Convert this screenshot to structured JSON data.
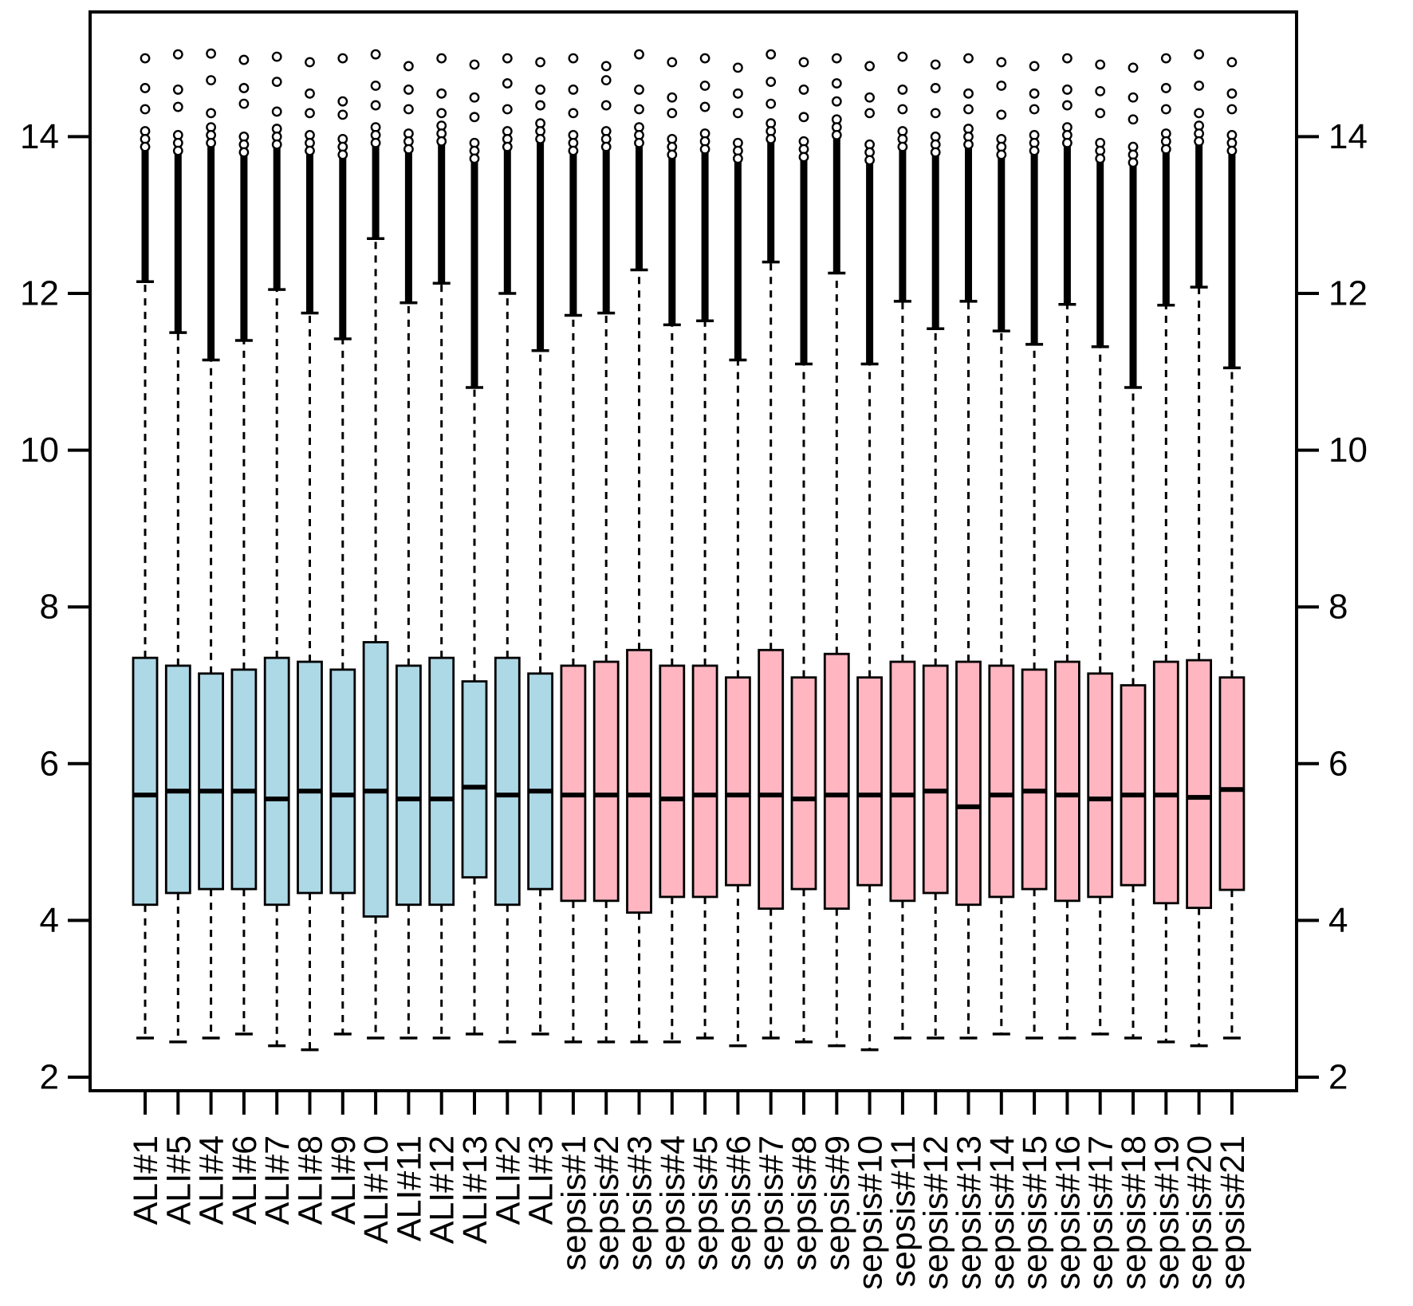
{
  "chart_data": {
    "type": "boxplot",
    "title": "",
    "xlabel": "",
    "ylabel": "",
    "ylim": [
      1.8,
      15.6
    ],
    "y_ticks": [
      2,
      4,
      6,
      8,
      10,
      12,
      14
    ],
    "y_axis_sides": [
      "left",
      "right"
    ],
    "grid": false,
    "legend": "none",
    "x_tick_label_rotation_deg": -90,
    "groups": [
      {
        "name": "ALI",
        "color": "#ADD8E6",
        "count": 13
      },
      {
        "name": "sepsis",
        "color": "#FFB6C1",
        "count": 21
      }
    ],
    "categories": [
      "ALI#1",
      "ALI#5",
      "ALI#4",
      "ALI#6",
      "ALI#7",
      "ALI#8",
      "ALI#9",
      "ALI#10",
      "ALI#11",
      "ALI#12",
      "ALI#13",
      "ALI#2",
      "ALI#3",
      "sepsis#1",
      "sepsis#2",
      "sepsis#3",
      "sepsis#4",
      "sepsis#5",
      "sepsis#6",
      "sepsis#7",
      "sepsis#8",
      "sepsis#9",
      "sepsis#10",
      "sepsis#11",
      "sepsis#12",
      "sepsis#13",
      "sepsis#14",
      "sepsis#15",
      "sepsis#16",
      "sepsis#17",
      "sepsis#18",
      "sepsis#19",
      "sepsis#20",
      "sepsis#21"
    ],
    "boxes": [
      {
        "label": "ALI#1",
        "group": "ALI",
        "whisker_low": 2.5,
        "q1": 4.2,
        "median": 5.6,
        "q3": 7.35,
        "whisker_high": 12.15,
        "outlier_col_top": 14.05,
        "outliers": [
          15.0,
          14.62,
          14.35
        ]
      },
      {
        "label": "ALI#5",
        "group": "ALI",
        "whisker_low": 2.45,
        "q1": 4.35,
        "median": 5.65,
        "q3": 7.25,
        "whisker_high": 11.5,
        "outlier_col_top": 14.0,
        "outliers": [
          15.05,
          14.6,
          14.38
        ]
      },
      {
        "label": "ALI#4",
        "group": "ALI",
        "whisker_low": 2.5,
        "q1": 4.4,
        "median": 5.65,
        "q3": 7.15,
        "whisker_high": 11.15,
        "outlier_col_top": 14.1,
        "outliers": [
          15.06,
          14.72,
          14.3
        ]
      },
      {
        "label": "ALI#6",
        "group": "ALI",
        "whisker_low": 2.55,
        "q1": 4.4,
        "median": 5.65,
        "q3": 7.2,
        "whisker_high": 11.4,
        "outlier_col_top": 13.98,
        "outliers": [
          14.98,
          14.62,
          14.42
        ]
      },
      {
        "label": "ALI#7",
        "group": "ALI",
        "whisker_low": 2.4,
        "q1": 4.2,
        "median": 5.55,
        "q3": 7.35,
        "whisker_high": 12.05,
        "outlier_col_top": 14.08,
        "outliers": [
          15.02,
          14.7,
          14.32
        ]
      },
      {
        "label": "ALI#8",
        "group": "ALI",
        "whisker_low": 2.35,
        "q1": 4.35,
        "median": 5.65,
        "q3": 7.3,
        "whisker_high": 11.75,
        "outlier_col_top": 14.0,
        "outliers": [
          14.95,
          14.55,
          14.3
        ]
      },
      {
        "label": "ALI#9",
        "group": "ALI",
        "whisker_low": 2.55,
        "q1": 4.35,
        "median": 5.6,
        "q3": 7.2,
        "whisker_high": 11.42,
        "outlier_col_top": 13.95,
        "outliers": [
          15.0,
          14.45,
          14.28
        ]
      },
      {
        "label": "ALI#10",
        "group": "ALI",
        "whisker_low": 2.5,
        "q1": 4.05,
        "median": 5.65,
        "q3": 7.55,
        "whisker_high": 12.7,
        "outlier_col_top": 14.1,
        "outliers": [
          15.05,
          14.65,
          14.4
        ]
      },
      {
        "label": "ALI#11",
        "group": "ALI",
        "whisker_low": 2.5,
        "q1": 4.2,
        "median": 5.55,
        "q3": 7.25,
        "whisker_high": 11.88,
        "outlier_col_top": 14.02,
        "outliers": [
          14.9,
          14.6,
          14.35
        ]
      },
      {
        "label": "ALI#12",
        "group": "ALI",
        "whisker_low": 2.5,
        "q1": 4.2,
        "median": 5.55,
        "q3": 7.35,
        "whisker_high": 12.13,
        "outlier_col_top": 14.12,
        "outliers": [
          15.0,
          14.55,
          14.3
        ]
      },
      {
        "label": "ALI#13",
        "group": "ALI",
        "whisker_low": 2.55,
        "q1": 4.55,
        "median": 5.7,
        "q3": 7.05,
        "whisker_high": 10.8,
        "outlier_col_top": 13.9,
        "outliers": [
          14.92,
          14.5,
          14.25
        ]
      },
      {
        "label": "ALI#2",
        "group": "ALI",
        "whisker_low": 2.45,
        "q1": 4.2,
        "median": 5.6,
        "q3": 7.35,
        "whisker_high": 12.0,
        "outlier_col_top": 14.05,
        "outliers": [
          15.0,
          14.68,
          14.35
        ]
      },
      {
        "label": "ALI#3",
        "group": "ALI",
        "whisker_low": 2.55,
        "q1": 4.4,
        "median": 5.65,
        "q3": 7.15,
        "whisker_high": 11.27,
        "outlier_col_top": 14.15,
        "outliers": [
          14.95,
          14.6,
          14.4
        ]
      },
      {
        "label": "sepsis#1",
        "group": "sepsis",
        "whisker_low": 2.45,
        "q1": 4.25,
        "median": 5.6,
        "q3": 7.25,
        "whisker_high": 11.72,
        "outlier_col_top": 14.0,
        "outliers": [
          15.0,
          14.6,
          14.3
        ]
      },
      {
        "label": "sepsis#2",
        "group": "sepsis",
        "whisker_low": 2.45,
        "q1": 4.25,
        "median": 5.6,
        "q3": 7.3,
        "whisker_high": 11.75,
        "outlier_col_top": 14.05,
        "outliers": [
          14.9,
          14.72,
          14.4
        ]
      },
      {
        "label": "sepsis#3",
        "group": "sepsis",
        "whisker_low": 2.45,
        "q1": 4.1,
        "median": 5.6,
        "q3": 7.45,
        "whisker_high": 12.3,
        "outlier_col_top": 14.1,
        "outliers": [
          15.05,
          14.6,
          14.35
        ]
      },
      {
        "label": "sepsis#4",
        "group": "sepsis",
        "whisker_low": 2.45,
        "q1": 4.3,
        "median": 5.55,
        "q3": 7.25,
        "whisker_high": 11.6,
        "outlier_col_top": 13.95,
        "outliers": [
          14.95,
          14.5,
          14.3
        ]
      },
      {
        "label": "sepsis#5",
        "group": "sepsis",
        "whisker_low": 2.5,
        "q1": 4.3,
        "median": 5.6,
        "q3": 7.25,
        "whisker_high": 11.65,
        "outlier_col_top": 14.02,
        "outliers": [
          15.0,
          14.65,
          14.38
        ]
      },
      {
        "label": "sepsis#6",
        "group": "sepsis",
        "whisker_low": 2.4,
        "q1": 4.45,
        "median": 5.6,
        "q3": 7.1,
        "whisker_high": 11.15,
        "outlier_col_top": 13.9,
        "outliers": [
          14.88,
          14.55,
          14.3
        ]
      },
      {
        "label": "sepsis#7",
        "group": "sepsis",
        "whisker_low": 2.5,
        "q1": 4.15,
        "median": 5.6,
        "q3": 7.45,
        "whisker_high": 12.4,
        "outlier_col_top": 14.15,
        "outliers": [
          15.05,
          14.7,
          14.42
        ]
      },
      {
        "label": "sepsis#8",
        "group": "sepsis",
        "whisker_low": 2.45,
        "q1": 4.4,
        "median": 5.55,
        "q3": 7.1,
        "whisker_high": 11.1,
        "outlier_col_top": 13.92,
        "outliers": [
          14.95,
          14.6,
          14.25
        ]
      },
      {
        "label": "sepsis#9",
        "group": "sepsis",
        "whisker_low": 2.4,
        "q1": 4.15,
        "median": 5.6,
        "q3": 7.4,
        "whisker_high": 12.26,
        "outlier_col_top": 14.2,
        "outliers": [
          15.0,
          14.68,
          14.45
        ]
      },
      {
        "label": "sepsis#10",
        "group": "sepsis",
        "whisker_low": 2.35,
        "q1": 4.45,
        "median": 5.6,
        "q3": 7.1,
        "whisker_high": 11.1,
        "outlier_col_top": 13.88,
        "outliers": [
          14.9,
          14.5,
          14.3
        ]
      },
      {
        "label": "sepsis#11",
        "group": "sepsis",
        "whisker_low": 2.5,
        "q1": 4.25,
        "median": 5.6,
        "q3": 7.3,
        "whisker_high": 11.9,
        "outlier_col_top": 14.05,
        "outliers": [
          15.02,
          14.6,
          14.35
        ]
      },
      {
        "label": "sepsis#12",
        "group": "sepsis",
        "whisker_low": 2.5,
        "q1": 4.35,
        "median": 5.65,
        "q3": 7.25,
        "whisker_high": 11.55,
        "outlier_col_top": 13.98,
        "outliers": [
          14.92,
          14.62,
          14.3
        ]
      },
      {
        "label": "sepsis#13",
        "group": "sepsis",
        "whisker_low": 2.5,
        "q1": 4.2,
        "median": 5.45,
        "q3": 7.3,
        "whisker_high": 11.9,
        "outlier_col_top": 14.08,
        "outliers": [
          15.0,
          14.55,
          14.35
        ]
      },
      {
        "label": "sepsis#14",
        "group": "sepsis",
        "whisker_low": 2.55,
        "q1": 4.3,
        "median": 5.6,
        "q3": 7.25,
        "whisker_high": 11.52,
        "outlier_col_top": 13.95,
        "outliers": [
          14.95,
          14.65,
          14.28
        ]
      },
      {
        "label": "sepsis#15",
        "group": "sepsis",
        "whisker_low": 2.5,
        "q1": 4.4,
        "median": 5.65,
        "q3": 7.2,
        "whisker_high": 11.35,
        "outlier_col_top": 14.0,
        "outliers": [
          14.9,
          14.55,
          14.35
        ]
      },
      {
        "label": "sepsis#16",
        "group": "sepsis",
        "whisker_low": 2.5,
        "q1": 4.25,
        "median": 5.6,
        "q3": 7.3,
        "whisker_high": 11.86,
        "outlier_col_top": 14.1,
        "outliers": [
          15.0,
          14.6,
          14.4
        ]
      },
      {
        "label": "sepsis#17",
        "group": "sepsis",
        "whisker_low": 2.55,
        "q1": 4.3,
        "median": 5.55,
        "q3": 7.15,
        "whisker_high": 11.32,
        "outlier_col_top": 13.9,
        "outliers": [
          14.92,
          14.58,
          14.3
        ]
      },
      {
        "label": "sepsis#18",
        "group": "sepsis",
        "whisker_low": 2.5,
        "q1": 4.45,
        "median": 5.6,
        "q3": 7.0,
        "whisker_high": 10.8,
        "outlier_col_top": 13.85,
        "outliers": [
          14.88,
          14.5,
          14.22
        ]
      },
      {
        "label": "sepsis#19",
        "group": "sepsis",
        "whisker_low": 2.45,
        "q1": 4.22,
        "median": 5.6,
        "q3": 7.3,
        "whisker_high": 11.85,
        "outlier_col_top": 14.02,
        "outliers": [
          15.0,
          14.62,
          14.35
        ]
      },
      {
        "label": "sepsis#20",
        "group": "sepsis",
        "whisker_low": 2.4,
        "q1": 4.16,
        "median": 5.57,
        "q3": 7.32,
        "whisker_high": 12.08,
        "outlier_col_top": 14.12,
        "outliers": [
          15.05,
          14.65,
          14.3
        ]
      },
      {
        "label": "sepsis#21",
        "group": "sepsis",
        "whisker_low": 2.5,
        "q1": 4.39,
        "median": 5.67,
        "q3": 7.1,
        "whisker_high": 11.05,
        "outlier_col_top": 14.0,
        "outliers": [
          14.95,
          14.55,
          14.35
        ]
      }
    ]
  },
  "colors": {
    "ali_fill": "#ADD8E6",
    "sepsis_fill": "#FFB6C1",
    "box_border": "#000000",
    "median": "#000000",
    "axis": "#000000",
    "background": "#FFFFFF",
    "outlier_fill": "#FFFFFF"
  }
}
